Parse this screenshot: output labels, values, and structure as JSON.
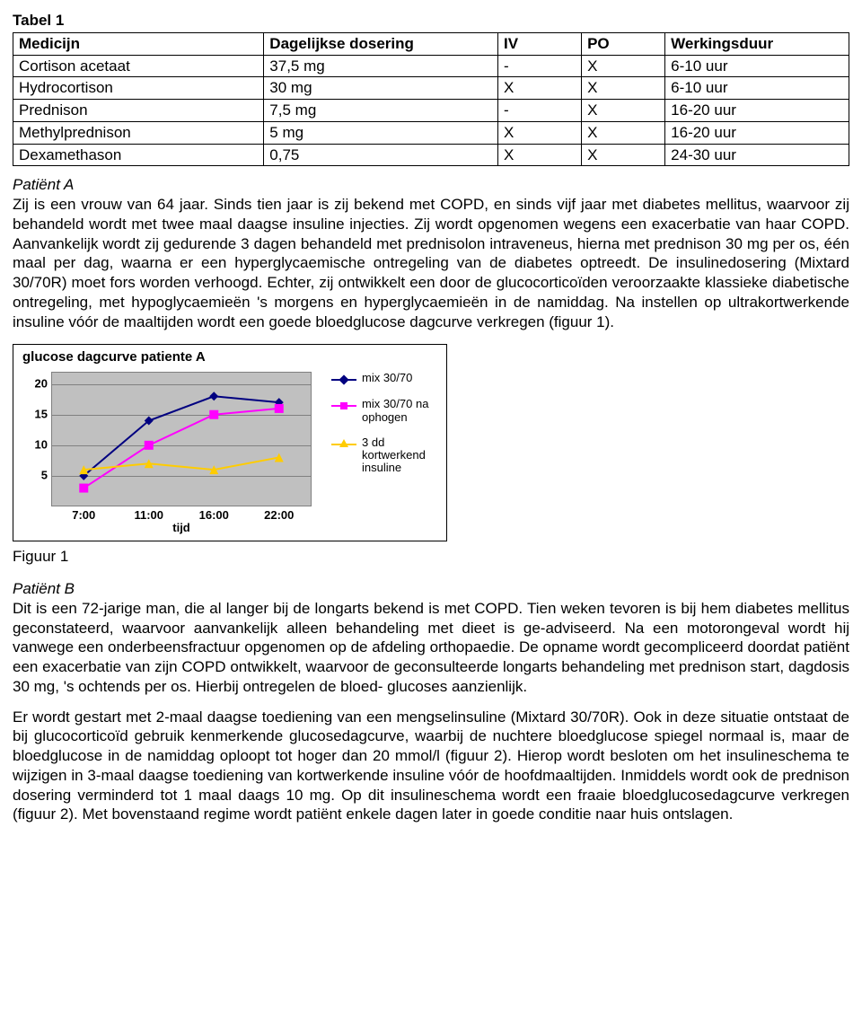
{
  "table": {
    "title": "Tabel 1",
    "columns": [
      "Medicijn",
      "Dagelijkse dosering",
      "IV",
      "PO",
      "Werkingsduur"
    ],
    "col_widths_pct": [
      30,
      28,
      10,
      10,
      22
    ],
    "rows": [
      [
        "Cortison acetaat",
        "37,5 mg",
        "-",
        "X",
        "6-10 uur"
      ],
      [
        "Hydrocortison",
        "30 mg",
        "X",
        "X",
        "6-10 uur"
      ],
      [
        "Prednison",
        "7,5 mg",
        "-",
        "X",
        "16-20 uur"
      ],
      [
        "Methylprednison",
        "5 mg",
        "X",
        "X",
        "16-20 uur"
      ],
      [
        "Dexamethason",
        "0,75",
        "X",
        "X",
        "24-30 uur"
      ]
    ]
  },
  "patientA": {
    "heading": "Patiënt A",
    "body": "Zij is een vrouw van 64 jaar. Sinds tien jaar is zij bekend met COPD, en sinds vijf jaar met diabetes mellitus, waarvoor zij behandeld wordt met twee maal daagse insuline injecties. Zij wordt opgenomen wegens een exacerbatie van haar COPD. Aanvankelijk wordt zij gedurende 3 dagen behandeld met prednisolon intraveneus, hierna met prednison 30 mg per os, één maal per dag, waarna er een hyperglycaemische ontregeling van de diabetes optreedt. De insulinedosering (Mixtard 30/70R) moet fors worden verhoogd. Echter, zij ontwikkelt een door de glucocorticoïden veroorzaakte klassieke diabetische ontregeling, met hypoglycaemieën 's morgens en hyperglycaemieën in de namiddag. Na instellen op ultrakortwerkende insuline vóór de maaltijden wordt een goede bloedglucose dagcurve verkregen (figuur 1)."
  },
  "chart": {
    "type": "line",
    "title": "glucose dagcurve patiente A",
    "xlabel": "tijd",
    "x_categories": [
      "7:00",
      "11:00",
      "16:00",
      "22:00"
    ],
    "y_ticks": [
      5,
      10,
      15,
      20
    ],
    "ylim": [
      0,
      22
    ],
    "plot_bg": "#c0c0c0",
    "grid_color": "#808080",
    "axis_font_size": 13,
    "title_font_size": 15,
    "series": [
      {
        "name": "mix 30/70",
        "color": "#000080",
        "marker": "diamond",
        "values": [
          5,
          14,
          18,
          17
        ]
      },
      {
        "name": "mix 30/70 na ophogen",
        "color": "#ff00ff",
        "marker": "square",
        "values": [
          3,
          10,
          15,
          16
        ]
      },
      {
        "name": "3 dd kortwerkend insuline",
        "color": "#ffcc00",
        "marker": "triangle",
        "values": [
          6,
          7,
          6,
          8
        ]
      }
    ]
  },
  "fig1_caption": "Figuur 1",
  "patientB": {
    "heading": "Patiënt B",
    "p1": "Dit is een 72-jarige man, die al langer bij de longarts bekend is met COPD. Tien weken tevoren is bij hem diabetes mellitus geconstateerd, waarvoor aanvankelijk alleen behandeling met dieet is ge-adviseerd. Na een motorongeval wordt hij vanwege een onderbeensfractuur opgenomen op de afdeling orthopaedie. De opname wordt gecompliceerd doordat patiënt een exacerbatie van zijn COPD ontwikkelt, waarvoor de geconsulteerde longarts behandeling met prednison start, dagdosis 30 mg, 's ochtends per os. Hierbij ontregelen de bloed- glucoses aanzienlijk.",
    "p2": "Er wordt gestart met 2-maal daagse toediening van een mengselinsuline (Mixtard 30/70R). Ook in deze situatie ontstaat de bij glucocorticoïd gebruik kenmerkende glucosedagcurve, waarbij de nuchtere bloedglucose spiegel normaal is, maar de bloedglucose in de namiddag oploopt tot hoger dan 20 mmol/l (figuur 2). Hierop wordt besloten om het insulineschema te wijzigen in 3-maal daagse toediening van kortwerkende insuline vóór de hoofdmaaltijden. Inmiddels wordt ook de prednison dosering verminderd tot 1 maal daags 10 mg. Op dit insulineschema wordt een fraaie bloedglucosedagcurve verkregen (figuur 2). Met bovenstaand regime wordt patiënt enkele dagen later in goede conditie naar huis ontslagen."
  }
}
